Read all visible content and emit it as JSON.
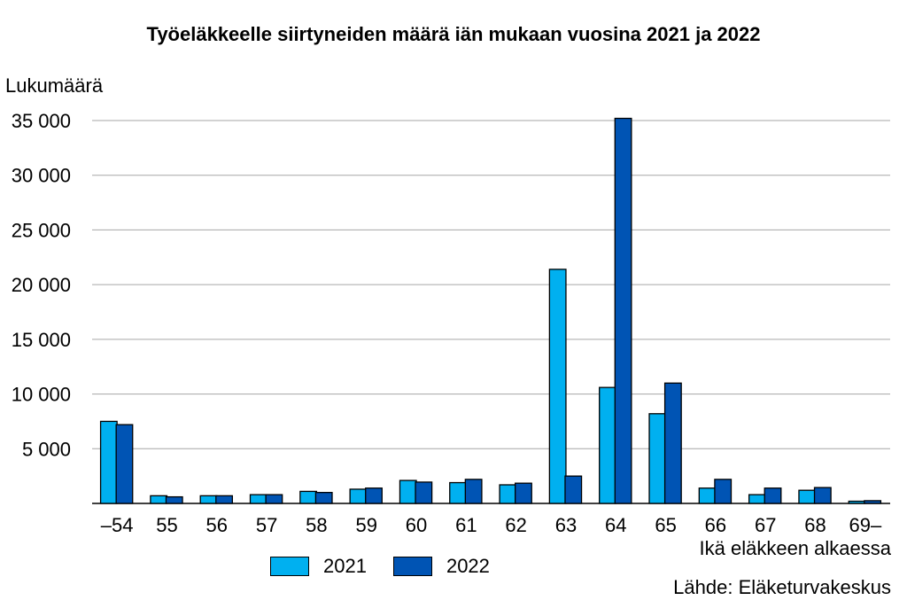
{
  "chart_data": {
    "type": "bar",
    "title": "Työeläkkeelle siirtyneiden määrä iän mukaan vuosina 2021 ja 2022",
    "ylabel": "Lukumäärä",
    "xlabel": "Ikä eläkkeen alkaessa",
    "source": "Lähde: Eläketurvakeskus",
    "categories": [
      "–54",
      "55",
      "56",
      "57",
      "58",
      "59",
      "60",
      "61",
      "62",
      "63",
      "64",
      "65",
      "66",
      "67",
      "68",
      "69–"
    ],
    "series": [
      {
        "name": "2021",
        "color": "#00b0f0",
        "values": [
          7500,
          700,
          700,
          800,
          1100,
          1300,
          2100,
          1900,
          1700,
          21400,
          10600,
          8200,
          1400,
          800,
          1200,
          200
        ]
      },
      {
        "name": "2022",
        "color": "#0054b4",
        "values": [
          7200,
          600,
          700,
          800,
          1000,
          1400,
          1950,
          2200,
          1850,
          2500,
          35200,
          11000,
          2200,
          1400,
          1450,
          250
        ]
      }
    ],
    "ylim": [
      0,
      35000
    ],
    "yticks": [
      {
        "value": 5000,
        "label": "5 000"
      },
      {
        "value": 10000,
        "label": "10 000"
      },
      {
        "value": 15000,
        "label": "15 000"
      },
      {
        "value": 20000,
        "label": "20 000"
      },
      {
        "value": 25000,
        "label": "25 000"
      },
      {
        "value": 30000,
        "label": "30 000"
      },
      {
        "value": 35000,
        "label": "35 000"
      }
    ],
    "grid": true,
    "legend": "bottom"
  }
}
